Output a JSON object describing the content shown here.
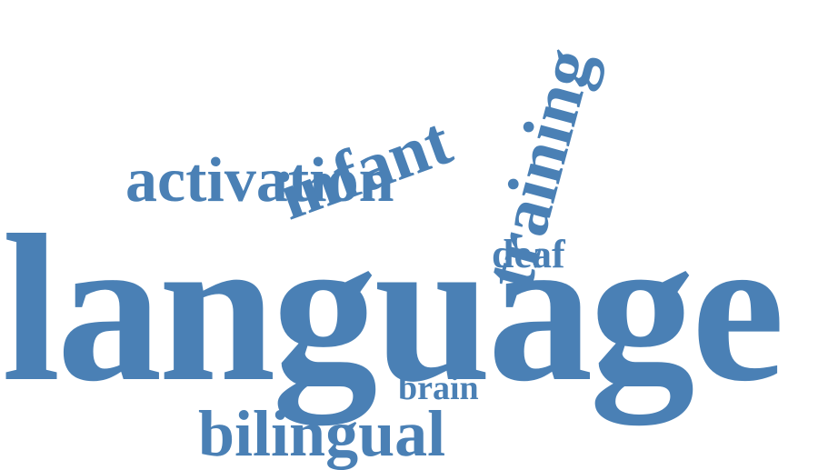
{
  "cloud": {
    "color": "#4a80b5",
    "words": {
      "language": "language",
      "activation": "activation",
      "infant": "infant",
      "training": "training",
      "deaf": "deaf",
      "brain": "brain",
      "bilingual": "bilingual"
    }
  }
}
